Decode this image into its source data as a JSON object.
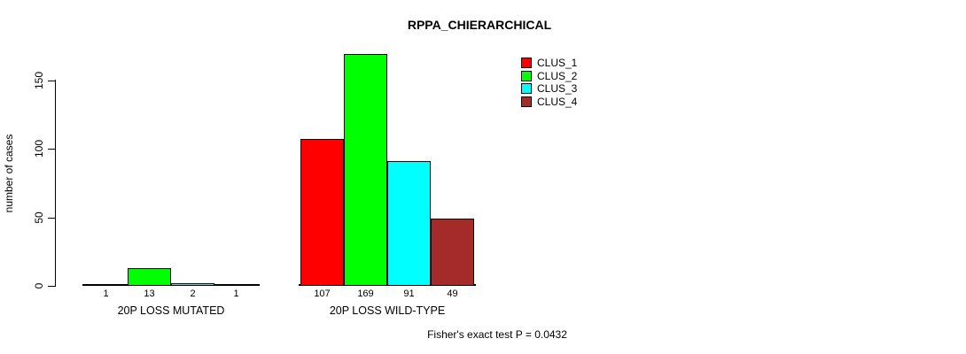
{
  "chart_data": {
    "type": "bar",
    "title": "RPPA_CHIERARCHICAL",
    "xlabel": "",
    "ylabel": "number of cases",
    "categories": [
      "20P LOSS MUTATED",
      "20P LOSS WILD-TYPE"
    ],
    "series": [
      {
        "name": "CLUS_1",
        "color": "#ff0000",
        "values": [
          1,
          107
        ]
      },
      {
        "name": "CLUS_2",
        "color": "#00ff00",
        "values": [
          13,
          169
        ]
      },
      {
        "name": "CLUS_3",
        "color": "#00ffff",
        "values": [
          2,
          91
        ]
      },
      {
        "name": "CLUS_4",
        "color": "#a52a2a",
        "values": [
          1,
          49
        ]
      }
    ],
    "yticks": [
      0,
      50,
      100,
      150
    ],
    "ylim": [
      0,
      170
    ],
    "grid": false,
    "legend_position": "top-right",
    "bar_value_labels": true,
    "annotation": "Fisher's exact test P = 0.0432"
  }
}
